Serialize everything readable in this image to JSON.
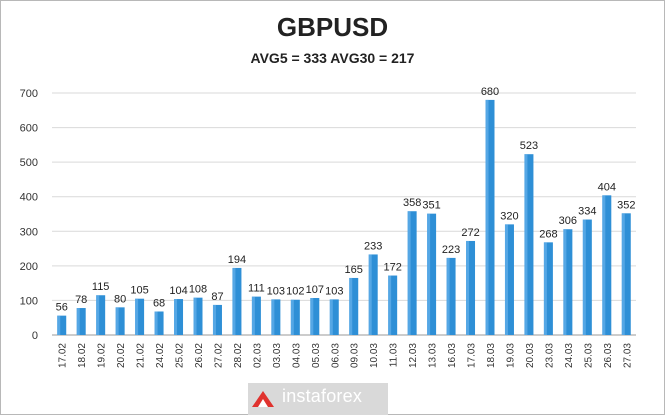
{
  "chart_data": {
    "type": "bar",
    "title": "GBPUSD",
    "subtitle": "AVG5 = 333 AVG30 = 217",
    "xlabel": "",
    "ylabel": "",
    "ylim": [
      0,
      700
    ],
    "yticks": [
      0,
      100,
      200,
      300,
      400,
      500,
      600,
      700
    ],
    "grid": true,
    "legend": "none",
    "bar_color": "#2e8fd6",
    "categories": [
      "17.02",
      "18.02",
      "19.02",
      "20.02",
      "21.02",
      "24.02",
      "25.02",
      "26.02",
      "27.02",
      "28.02",
      "02.03",
      "03.03",
      "04.03",
      "05.03",
      "06.03",
      "09.03",
      "10.03",
      "11.03",
      "12.03",
      "13.03",
      "16.03",
      "17.03",
      "18.03",
      "19.03",
      "20.03",
      "23.03",
      "24.03",
      "25.03",
      "26.03",
      "27.03"
    ],
    "values": [
      56,
      78,
      115,
      80,
      105,
      68,
      104,
      108,
      87,
      194,
      111,
      103,
      102,
      107,
      103,
      165,
      233,
      172,
      358,
      351,
      223,
      272,
      680,
      320,
      523,
      268,
      306,
      334,
      404,
      352
    ]
  },
  "watermark": {
    "text": "instaforex",
    "color": "#e0322e"
  }
}
